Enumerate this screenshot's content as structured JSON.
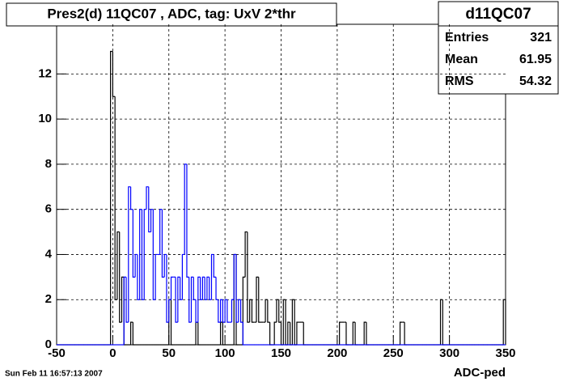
{
  "chart_data": {
    "type": "histogram",
    "title": "Pres2(d) 11QC07 , ADC, tag: UxV 2*thr",
    "x_label": "ADC-ped",
    "footer": "Sun Feb 11 16:57:13 2007",
    "stats": {
      "title": "d11QC07",
      "rows": [
        [
          "Entries",
          "321"
        ],
        [
          "Mean",
          "61.95"
        ],
        [
          "RMS",
          "54.32"
        ]
      ]
    },
    "xlim": [
      -50,
      350
    ],
    "xticks": [
      -50,
      0,
      50,
      100,
      150,
      200,
      250,
      300,
      350
    ],
    "ylim": [
      0,
      14.2
    ],
    "yticks": [
      0,
      2,
      4,
      6,
      8,
      10,
      12
    ],
    "grid": true,
    "bins": [
      -50,
      -48,
      -46,
      -44,
      -42,
      -40,
      -38,
      -36,
      -34,
      -32,
      -30,
      -28,
      -26,
      -24,
      -22,
      -20,
      -18,
      -16,
      -14,
      -12,
      -10,
      -8,
      -6,
      -4,
      -2,
      0,
      2,
      4,
      6,
      8,
      10,
      12,
      14,
      16,
      18,
      20,
      22,
      24,
      26,
      28,
      30,
      32,
      34,
      36,
      38,
      40,
      42,
      44,
      46,
      48,
      50,
      52,
      54,
      56,
      58,
      60,
      62,
      64,
      66,
      68,
      70,
      72,
      74,
      76,
      78,
      80,
      82,
      84,
      86,
      88,
      90,
      92,
      94,
      96,
      98,
      100,
      102,
      104,
      106,
      108,
      110,
      112,
      114,
      116,
      118,
      120,
      122,
      124,
      126,
      128,
      130,
      132,
      134,
      136,
      138,
      140,
      142,
      144,
      146,
      148,
      150,
      152,
      154,
      156,
      158,
      160,
      162,
      164,
      166,
      168,
      170,
      172,
      174,
      176,
      178,
      180,
      182,
      184,
      186,
      188,
      190,
      192,
      194,
      196,
      198,
      200,
      202,
      204,
      206,
      208,
      210,
      212,
      214,
      216,
      218,
      220,
      222,
      224,
      226,
      228,
      230,
      232,
      234,
      236,
      238,
      240,
      242,
      244,
      246,
      248,
      250,
      252,
      254,
      256,
      258,
      260,
      262,
      264,
      266,
      268,
      270,
      272,
      274,
      276,
      278,
      280,
      282,
      284,
      286,
      288,
      290,
      292,
      294,
      296,
      298,
      300,
      302,
      304,
      306,
      308,
      310,
      312,
      314,
      316,
      318,
      320,
      322,
      324,
      326,
      328,
      330,
      332,
      334,
      336,
      338,
      340,
      342,
      344,
      346,
      348,
      350
    ],
    "series": [
      {
        "color": "#000000",
        "values": [
          0,
          0,
          0,
          0,
          0,
          0,
          0,
          0,
          0,
          0,
          0,
          0,
          0,
          0,
          0,
          0,
          0,
          0,
          0,
          0,
          0,
          0,
          0,
          0,
          13,
          11,
          2,
          5,
          1,
          3,
          0,
          0,
          0,
          1,
          0,
          0,
          0,
          0,
          0,
          0,
          0,
          0,
          0,
          0,
          0,
          0,
          0,
          0,
          0,
          0,
          2,
          0,
          0,
          0,
          0,
          0,
          0,
          0,
          0,
          0,
          0,
          0,
          1,
          0,
          0,
          0,
          0,
          0,
          0,
          0,
          0,
          0,
          0,
          1,
          0,
          0,
          0,
          0,
          0,
          4,
          0,
          0,
          0,
          3,
          5,
          1,
          2,
          1,
          1,
          3,
          1,
          1,
          1,
          2,
          1,
          0,
          0,
          1,
          2,
          1,
          0,
          2,
          0,
          1,
          0,
          2,
          0,
          1,
          1,
          1,
          0,
          0,
          0,
          0,
          0,
          0,
          0,
          0,
          0,
          0,
          0,
          0,
          0,
          0,
          0,
          0,
          1,
          1,
          1,
          0,
          0,
          0,
          1,
          0,
          0,
          0,
          0,
          1,
          0,
          0,
          0,
          0,
          0,
          0,
          0,
          0,
          0,
          0,
          0,
          0,
          0,
          0,
          0,
          1,
          1,
          0,
          0,
          0,
          0,
          0,
          0,
          0,
          0,
          0,
          0,
          0,
          0,
          0,
          0,
          0,
          0,
          2,
          0,
          0,
          0,
          0,
          0,
          0,
          0,
          0,
          0,
          0,
          0,
          0,
          0,
          0,
          0,
          0,
          0,
          0,
          0,
          0,
          0,
          0,
          0,
          0,
          0,
          0,
          0,
          2
        ]
      },
      {
        "color": "#0000ff",
        "values": [
          0,
          0,
          0,
          0,
          0,
          0,
          0,
          0,
          0,
          0,
          0,
          0,
          0,
          0,
          0,
          0,
          0,
          0,
          0,
          0,
          0,
          0,
          0,
          0,
          0,
          0,
          0,
          0,
          0,
          0,
          3,
          1,
          7,
          6,
          3,
          4,
          2,
          6,
          2,
          6,
          7,
          5,
          6,
          2,
          4,
          4,
          6,
          3,
          4,
          1,
          2,
          3,
          3,
          1,
          3,
          2,
          4,
          8,
          3,
          1,
          3,
          2,
          1,
          3,
          2,
          3,
          2,
          3,
          2,
          4,
          3,
          2,
          1,
          2,
          1,
          2,
          1,
          1,
          2,
          4,
          1,
          2,
          1,
          0,
          0,
          0,
          0,
          0,
          0,
          0,
          0,
          0,
          0,
          0,
          0,
          0,
          0,
          0,
          0,
          0,
          0,
          0,
          0,
          0,
          0,
          0,
          0,
          0,
          0,
          0,
          0,
          0,
          0,
          0,
          0,
          0,
          0,
          0,
          0,
          0,
          0,
          0,
          0,
          0,
          0,
          0,
          0,
          0,
          0,
          0,
          0,
          0,
          0,
          0,
          0,
          0,
          0,
          0,
          0,
          0,
          0,
          0,
          0,
          0,
          0,
          0,
          0,
          0,
          0,
          0,
          0,
          0,
          0,
          0,
          0,
          0,
          0,
          0,
          0,
          0,
          0,
          0,
          0,
          0,
          0,
          0,
          0,
          0,
          0,
          0,
          0,
          0,
          0,
          0,
          0,
          0,
          0,
          0,
          0,
          0,
          0,
          0,
          0,
          0,
          0,
          0,
          0,
          0,
          0,
          0,
          0,
          0,
          0,
          0,
          0,
          0,
          0,
          0,
          0,
          0
        ]
      }
    ]
  }
}
